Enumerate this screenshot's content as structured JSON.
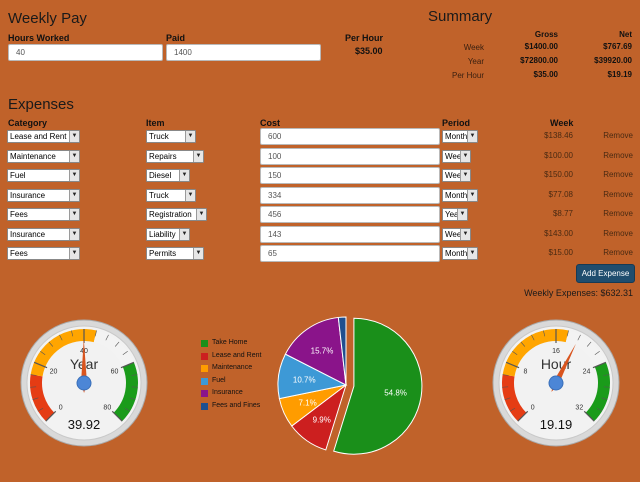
{
  "weekly_pay": {
    "title": "Weekly Pay",
    "hours_label": "Hours Worked",
    "hours_value": "40",
    "paid_label": "Paid",
    "paid_value": "1400",
    "per_hour_label": "Per Hour",
    "per_hour_value": "$35.00"
  },
  "summary": {
    "title": "Summary",
    "col_gross": "Gross",
    "col_net": "Net",
    "rows": [
      {
        "label": "Week",
        "gross": "$1400.00",
        "net": "$767.69"
      },
      {
        "label": "Year",
        "gross": "$72800.00",
        "net": "$39920.00"
      },
      {
        "label": "Per Hour",
        "gross": "$35.00",
        "net": "$19.19"
      }
    ]
  },
  "expenses": {
    "title": "Expenses",
    "col_category": "Category",
    "col_item": "Item",
    "col_cost": "Cost",
    "col_period": "Period",
    "col_week": "Week",
    "remove_label": "Remove",
    "rows": [
      {
        "category": "Lease and Rent",
        "item": "Truck",
        "cost": "600",
        "period": "Month",
        "week": "$138.46"
      },
      {
        "category": "Maintenance",
        "item": "Repairs",
        "cost": "100",
        "period": "Week",
        "week": "$100.00"
      },
      {
        "category": "Fuel",
        "item": "Diesel",
        "cost": "150",
        "period": "Week",
        "week": "$150.00"
      },
      {
        "category": "Insurance",
        "item": "Truck",
        "cost": "334",
        "period": "Month",
        "week": "$77.08"
      },
      {
        "category": "Fees",
        "item": "Registration",
        "cost": "456",
        "period": "Year",
        "week": "$8.77"
      },
      {
        "category": "Insurance",
        "item": "Liability",
        "cost": "143",
        "period": "Week",
        "week": "$143.00"
      },
      {
        "category": "Fees",
        "item": "Permits",
        "cost": "65",
        "period": "Month",
        "week": "$15.00"
      }
    ],
    "add_button": "Add Expense",
    "weekly_total": "Weekly Expenses: $632.31"
  },
  "gauges": {
    "year": {
      "title": "Year",
      "value": 39.92,
      "value_text": "39.92",
      "min": 0,
      "max": 80,
      "ticks": [
        "0",
        "20",
        "40",
        "60",
        "80"
      ]
    },
    "hour": {
      "title": "Hour",
      "value": 19.19,
      "value_text": "19.19",
      "min": 0,
      "max": 32,
      "ticks": [
        "0",
        "8",
        "16",
        "24",
        "32"
      ]
    }
  },
  "colors": {
    "background": "#c0622a",
    "take_home": "#1a8f1a",
    "lease_rent": "#cc1f1f",
    "maintenance": "#ff9c00",
    "fuel": "#3d99d6",
    "insurance": "#8a148a",
    "fees": "#1f4f8f"
  },
  "chart_data": {
    "type": "pie",
    "slices": [
      {
        "name": "Take Home",
        "value": 54.8,
        "label": "54.8%",
        "color": "#1a8f1a"
      },
      {
        "name": "Lease and Rent",
        "value": 9.9,
        "label": "9.9%",
        "color": "#cc1f1f"
      },
      {
        "name": "Maintenance",
        "value": 7.1,
        "label": "7.1%",
        "color": "#ff9c00"
      },
      {
        "name": "Fuel",
        "value": 10.7,
        "label": "10.7%",
        "color": "#3d99d6"
      },
      {
        "name": "Insurance",
        "value": 15.7,
        "label": "15.7%",
        "color": "#8a148a"
      },
      {
        "name": "Fees and Fines",
        "value": 1.8,
        "label": "",
        "color": "#1f4f8f"
      }
    ],
    "legend": [
      "Take Home",
      "Lease and Rent",
      "Maintenance",
      "Fuel",
      "Insurance",
      "Fees and Fines"
    ],
    "legend_position": "left"
  }
}
